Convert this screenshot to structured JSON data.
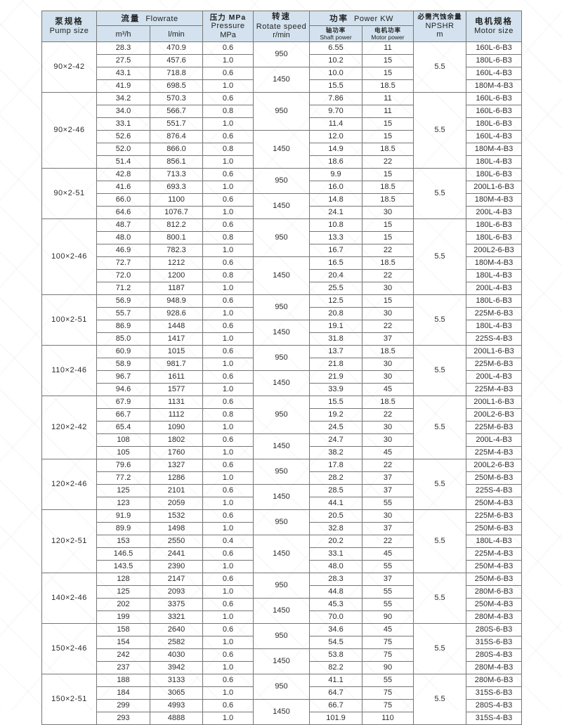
{
  "colors": {
    "header_bg": "#d3e2ee",
    "border": "#767676",
    "text": "#2d2d2d"
  },
  "table": {
    "header": {
      "pump": {
        "zh": "泵规格",
        "en": "Pump size"
      },
      "flowrate": {
        "zh": "流量",
        "en": "Flowrate",
        "unit_m3h": "m³/h",
        "unit_lmin": "l/min"
      },
      "pressure": {
        "line1": "压力 MPa",
        "line2": "Pressure",
        "line3": "MPa"
      },
      "speed": {
        "line1": "转速",
        "line2": "Rotate speed",
        "line3": "r/min"
      },
      "power": {
        "zh": "功率",
        "en": "Power KW",
        "shaft": {
          "zh": "轴功率",
          "en": "Shaft power"
        },
        "motor": {
          "zh": "电机功率",
          "en": "Motor power"
        }
      },
      "npshr": {
        "line1": "必需汽蚀余量",
        "line2": "NPSHR",
        "line3": "m"
      },
      "motor_size": {
        "zh": "电机规格",
        "en": "Motor size"
      }
    },
    "groups": [
      {
        "pump_size": "90×2-42",
        "npshr": "5.5",
        "speed_blocks": [
          {
            "speed": "950",
            "rows": [
              [
                "28.3",
                "470.9",
                "0.6",
                "6.55",
                "11",
                "160L-6-B3"
              ],
              [
                "27.5",
                "457.6",
                "1.0",
                "10.2",
                "15",
                "180L-6-B3"
              ]
            ]
          },
          {
            "speed": "1450",
            "rows": [
              [
                "43.1",
                "718.8",
                "0.6",
                "10.0",
                "15",
                "160L-4-B3"
              ],
              [
                "41.9",
                "698.5",
                "1.0",
                "15.5",
                "18.5",
                "180M-4-B3"
              ]
            ]
          }
        ]
      },
      {
        "pump_size": "90×2-46",
        "npshr": "5.5",
        "speed_blocks": [
          {
            "speed": "950",
            "rows": [
              [
                "34.2",
                "570.3",
                "0.6",
                "7.86",
                "11",
                "160L-6-B3"
              ],
              [
                "34.0",
                "566.7",
                "0.8",
                "9.70",
                "11",
                "160L-6-B3"
              ],
              [
                "33.1",
                "551.7",
                "1.0",
                "11.4",
                "15",
                "180L-6-B3"
              ]
            ]
          },
          {
            "speed": "1450",
            "rows": [
              [
                "52.6",
                "876.4",
                "0.6",
                "12.0",
                "15",
                "160L-4-B3"
              ],
              [
                "52.0",
                "866.0",
                "0.8",
                "14.9",
                "18.5",
                "180M-4-B3"
              ],
              [
                "51.4",
                "856.1",
                "1.0",
                "18.6",
                "22",
                "180L-4-B3"
              ]
            ]
          }
        ]
      },
      {
        "pump_size": "90×2-51",
        "npshr": "5.5",
        "speed_blocks": [
          {
            "speed": "950",
            "rows": [
              [
                "42.8",
                "713.3",
                "0.6",
                "9.9",
                "15",
                "180L-6-B3"
              ],
              [
                "41.6",
                "693.3",
                "1.0",
                "16.0",
                "18.5",
                "200L1-6-B3"
              ]
            ]
          },
          {
            "speed": "1450",
            "rows": [
              [
                "66.0",
                "1100",
                "0.6",
                "14.8",
                "18.5",
                "180M-4-B3"
              ],
              [
                "64.6",
                "1076.7",
                "1.0",
                "24.1",
                "30",
                "200L-4-B3"
              ]
            ]
          }
        ]
      },
      {
        "pump_size": "100×2-46",
        "npshr": "5.5",
        "speed_blocks": [
          {
            "speed": "950",
            "rows": [
              [
                "48.7",
                "812.2",
                "0.6",
                "10.8",
                "15",
                "180L-6-B3"
              ],
              [
                "48.0",
                "800.1",
                "0.8",
                "13.3",
                "15",
                "180L-6-B3"
              ],
              [
                "46.9",
                "782.3",
                "1.0",
                "16.7",
                "22",
                "200L2-6-B3"
              ]
            ]
          },
          {
            "speed": "1450",
            "rows": [
              [
                "72.7",
                "1212",
                "0.6",
                "16.5",
                "18.5",
                "180M-4-B3"
              ],
              [
                "72.0",
                "1200",
                "0.8",
                "20.4",
                "22",
                "180L-4-B3"
              ],
              [
                "71.2",
                "1187",
                "1.0",
                "25.5",
                "30",
                "200L-4-B3"
              ]
            ]
          }
        ]
      },
      {
        "pump_size": "100×2-51",
        "npshr": "5.5",
        "speed_blocks": [
          {
            "speed": "950",
            "rows": [
              [
                "56.9",
                "948.9",
                "0.6",
                "12.5",
                "15",
                "180L-6-B3"
              ],
              [
                "55.7",
                "928.6",
                "1.0",
                "20.8",
                "30",
                "225M-6-B3"
              ]
            ]
          },
          {
            "speed": "1450",
            "rows": [
              [
                "86.9",
                "1448",
                "0.6",
                "19.1",
                "22",
                "180L-4-B3"
              ],
              [
                "85.0",
                "1417",
                "1.0",
                "31.8",
                "37",
                "225S-4-B3"
              ]
            ]
          }
        ]
      },
      {
        "pump_size": "110×2-46",
        "npshr": "5.5",
        "speed_blocks": [
          {
            "speed": "950",
            "rows": [
              [
                "60.9",
                "1015",
                "0.6",
                "13.7",
                "18.5",
                "200L1-6-B3"
              ],
              [
                "58.9",
                "981.7",
                "1.0",
                "21.8",
                "30",
                "225M-6-B3"
              ]
            ]
          },
          {
            "speed": "1450",
            "rows": [
              [
                "96.7",
                "1611",
                "0.6",
                "21.9",
                "30",
                "200L-4-B3"
              ],
              [
                "94.6",
                "1577",
                "1.0",
                "33.9",
                "45",
                "225M-4-B3"
              ]
            ]
          }
        ]
      },
      {
        "pump_size": "120×2-42",
        "npshr": "5.5",
        "speed_blocks": [
          {
            "speed": "950",
            "rows": [
              [
                "67.9",
                "1131",
                "0.6",
                "15.5",
                "18.5",
                "200L1-6-B3"
              ],
              [
                "66.7",
                "1112",
                "0.8",
                "19.2",
                "22",
                "200L2-6-B3"
              ],
              [
                "65.4",
                "1090",
                "1.0",
                "24.5",
                "30",
                "225M-6-B3"
              ]
            ]
          },
          {
            "speed": "1450",
            "rows": [
              [
                "108",
                "1802",
                "0.6",
                "24.7",
                "30",
                "200L-4-B3"
              ],
              [
                "105",
                "1760",
                "1.0",
                "38.2",
                "45",
                "225M-4-B3"
              ]
            ]
          }
        ]
      },
      {
        "pump_size": "120×2-46",
        "npshr": "5.5",
        "speed_blocks": [
          {
            "speed": "950",
            "rows": [
              [
                "79.6",
                "1327",
                "0.6",
                "17.8",
                "22",
                "200L2-6-B3"
              ],
              [
                "77.2",
                "1286",
                "1.0",
                "28.2",
                "37",
                "250M-6-B3"
              ]
            ]
          },
          {
            "speed": "1450",
            "rows": [
              [
                "125",
                "2101",
                "0.6",
                "28.5",
                "37",
                "225S-4-B3"
              ],
              [
                "123",
                "2059",
                "1.0",
                "44.1",
                "55",
                "250M-4-B3"
              ]
            ]
          }
        ]
      },
      {
        "pump_size": "120×2-51",
        "npshr": "5.5",
        "speed_blocks": [
          {
            "speed": "950",
            "rows": [
              [
                "91.9",
                "1532",
                "0.6",
                "20.5",
                "30",
                "225M-6-B3"
              ],
              [
                "89.9",
                "1498",
                "1.0",
                "32.8",
                "37",
                "250M-6-B3"
              ]
            ]
          },
          {
            "speed": "1450",
            "rows": [
              [
                "153",
                "2550",
                "0.4",
                "20.2",
                "22",
                "180L-4-B3"
              ],
              [
                "146.5",
                "2441",
                "0.6",
                "33.1",
                "45",
                "225M-4-B3"
              ],
              [
                "143.5",
                "2390",
                "1.0",
                "48.0",
                "55",
                "250M-4-B3"
              ]
            ]
          }
        ]
      },
      {
        "pump_size": "140×2-46",
        "npshr": "5.5",
        "speed_blocks": [
          {
            "speed": "950",
            "rows": [
              [
                "128",
                "2147",
                "0.6",
                "28.3",
                "37",
                "250M-6-B3"
              ],
              [
                "125",
                "2093",
                "1.0",
                "44.8",
                "55",
                "280M-6-B3"
              ]
            ]
          },
          {
            "speed": "1450",
            "rows": [
              [
                "202",
                "3375",
                "0.6",
                "45.3",
                "55",
                "250M-4-B3"
              ],
              [
                "199",
                "3321",
                "1.0",
                "70.0",
                "90",
                "280M-4-B3"
              ]
            ]
          }
        ]
      },
      {
        "pump_size": "150×2-46",
        "npshr": "5.5",
        "speed_blocks": [
          {
            "speed": "950",
            "rows": [
              [
                "158",
                "2640",
                "0.6",
                "34.6",
                "45",
                "280S-6-B3"
              ],
              [
                "154",
                "2582",
                "1.0",
                "54.5",
                "75",
                "315S-6-B3"
              ]
            ]
          },
          {
            "speed": "1450",
            "rows": [
              [
                "242",
                "4030",
                "0.6",
                "53.8",
                "75",
                "280S-4-B3"
              ],
              [
                "237",
                "3942",
                "1.0",
                "82.2",
                "90",
                "280M-4-B3"
              ]
            ]
          }
        ]
      },
      {
        "pump_size": "150×2-51",
        "npshr": "5.5",
        "speed_blocks": [
          {
            "speed": "950",
            "rows": [
              [
                "188",
                "3133",
                "0.6",
                "41.1",
                "55",
                "280M-6-B3"
              ],
              [
                "184",
                "3065",
                "1.0",
                "64.7",
                "75",
                "315S-6-B3"
              ]
            ]
          },
          {
            "speed": "1450",
            "rows": [
              [
                "299",
                "4993",
                "0.6",
                "66.7",
                "75",
                "280S-4-B3"
              ],
              [
                "293",
                "4888",
                "1.0",
                "101.9",
                "110",
                "315S-4-B3"
              ]
            ]
          }
        ]
      }
    ]
  }
}
